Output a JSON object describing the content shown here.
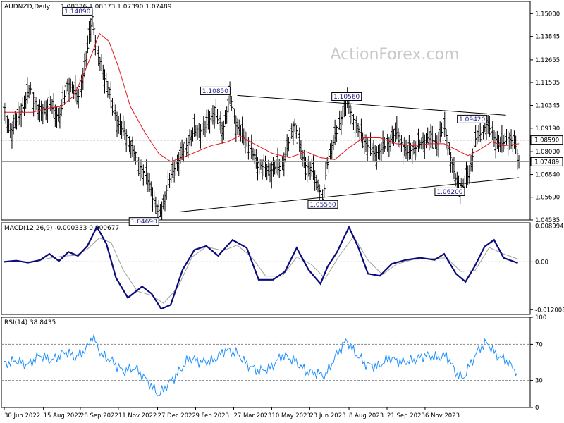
{
  "chart_data": [
    {
      "type": "line",
      "subtype": "ohlc-bars",
      "title": "AUDNZD,Daily",
      "ohlc_header": "1.08336 1.08373 1.07390 1.07489",
      "watermark": "ActionForex.com",
      "ylim": [
        1.04535,
        1.1562
      ],
      "y_ticks": [
        "1.15000",
        "1.13845",
        "1.12655",
        "1.11505",
        "1.10345",
        "1.09190",
        "1.08000",
        "1.06840",
        "1.05690",
        "1.04535"
      ],
      "y_tick_values": [
        1.15,
        1.13845,
        1.12655,
        1.11505,
        1.10345,
        1.0919,
        1.08,
        1.0684,
        1.0569,
        1.04535
      ],
      "price_levels": [
        {
          "label": "1.08590",
          "value": 1.0859,
          "style": "dashed"
        },
        {
          "label": "1.07489",
          "value": 1.07489,
          "style": "solid"
        }
      ],
      "x_index_range": [
        0,
        440
      ],
      "x_ticks": [
        "30 Jun 2022",
        "15 Aug 2022",
        "28 Sep 2022",
        "11 Nov 2022",
        "27 Dec 2022",
        "9 Feb 2023",
        "27 Mar 2023",
        "10 May 2023",
        "23 Jun 2023",
        "8 Aug 2023",
        "21 Sep 2023",
        "6 Nov 2023"
      ],
      "x_tick_index": [
        0,
        33,
        64,
        96,
        129,
        161,
        193,
        225,
        257,
        290,
        322,
        354
      ],
      "price_points": [
        [
          0,
          1.1
        ],
        [
          6,
          1.09
        ],
        [
          14,
          1.1
        ],
        [
          22,
          1.112
        ],
        [
          30,
          1.099
        ],
        [
          38,
          1.104
        ],
        [
          46,
          1.097
        ],
        [
          54,
          1.116
        ],
        [
          62,
          1.107
        ],
        [
          68,
          1.123
        ],
        [
          74,
          1.1489
        ],
        [
          78,
          1.13
        ],
        [
          84,
          1.12
        ],
        [
          90,
          1.105
        ],
        [
          96,
          1.094
        ],
        [
          104,
          1.087
        ],
        [
          112,
          1.075
        ],
        [
          122,
          1.064
        ],
        [
          130,
          1.0469
        ],
        [
          134,
          1.055
        ],
        [
          140,
          1.068
        ],
        [
          150,
          1.079
        ],
        [
          160,
          1.091
        ],
        [
          168,
          1.091
        ],
        [
          176,
          1.1
        ],
        [
          184,
          1.091
        ],
        [
          190,
          1.1085
        ],
        [
          196,
          1.092
        ],
        [
          204,
          1.085
        ],
        [
          212,
          1.075
        ],
        [
          222,
          1.07
        ],
        [
          234,
          1.073
        ],
        [
          244,
          1.095
        ],
        [
          252,
          1.074
        ],
        [
          260,
          1.069
        ],
        [
          268,
          1.0556
        ],
        [
          272,
          1.076
        ],
        [
          280,
          1.09
        ],
        [
          288,
          1.1056
        ],
        [
          294,
          1.096
        ],
        [
          302,
          1.086
        ],
        [
          312,
          1.078
        ],
        [
          322,
          1.084
        ],
        [
          330,
          1.09
        ],
        [
          338,
          1.079
        ],
        [
          348,
          1.083
        ],
        [
          356,
          1.087
        ],
        [
          364,
          1.084
        ],
        [
          370,
          1.093
        ],
        [
          374,
          1.082
        ],
        [
          380,
          1.065
        ],
        [
          386,
          1.062
        ],
        [
          392,
          1.07
        ],
        [
          396,
          1.086
        ],
        [
          402,
          1.09
        ],
        [
          406,
          1.0942
        ],
        [
          412,
          1.087
        ],
        [
          418,
          1.083
        ],
        [
          424,
          1.087
        ],
        [
          430,
          1.0834
        ],
        [
          433,
          1.07489
        ]
      ],
      "moving_average": [
        [
          0,
          1.1
        ],
        [
          12,
          1.1
        ],
        [
          24,
          1.1
        ],
        [
          36,
          1.102
        ],
        [
          48,
          1.103
        ],
        [
          58,
          1.108
        ],
        [
          66,
          1.118
        ],
        [
          74,
          1.13
        ],
        [
          80,
          1.14
        ],
        [
          88,
          1.136
        ],
        [
          96,
          1.123
        ],
        [
          106,
          1.103
        ],
        [
          118,
          1.09
        ],
        [
          130,
          1.079
        ],
        [
          140,
          1.075
        ],
        [
          150,
          1.077
        ],
        [
          162,
          1.08
        ],
        [
          174,
          1.083
        ],
        [
          188,
          1.085
        ],
        [
          198,
          1.088
        ],
        [
          210,
          1.084
        ],
        [
          226,
          1.079
        ],
        [
          240,
          1.077
        ],
        [
          254,
          1.08
        ],
        [
          266,
          1.077
        ],
        [
          278,
          1.076
        ],
        [
          290,
          1.082
        ],
        [
          302,
          1.087
        ],
        [
          316,
          1.087
        ],
        [
          330,
          1.084
        ],
        [
          344,
          1.083
        ],
        [
          358,
          1.084
        ],
        [
          370,
          1.084
        ],
        [
          380,
          1.081
        ],
        [
          390,
          1.078
        ],
        [
          400,
          1.081
        ],
        [
          410,
          1.085
        ],
        [
          420,
          1.083
        ],
        [
          433,
          1.084
        ]
      ],
      "trend_lines": [
        {
          "from": [
            148,
            1.0495
          ],
          "to": [
            433,
            1.0668
          ]
        },
        {
          "from": [
            196,
            1.1085
          ],
          "to": [
            422,
            1.0985
          ]
        }
      ],
      "annotations": [
        {
          "label": "1.14890",
          "x": 74,
          "y": 1.1489,
          "anchor": "left"
        },
        {
          "label": "1.10850",
          "x": 190,
          "y": 1.1085,
          "anchor": "left"
        },
        {
          "label": "1.10560",
          "x": 288,
          "y": 1.1056,
          "anchor": "center"
        },
        {
          "label": "1.09420",
          "x": 406,
          "y": 1.0942,
          "anchor": "left"
        },
        {
          "label": "1.06200",
          "x": 386,
          "y": 1.062,
          "anchor": "right"
        },
        {
          "label": "1.05560",
          "x": 268,
          "y": 1.0556,
          "anchor": "center"
        },
        {
          "label": "1.04690",
          "x": 130,
          "y": 1.0469,
          "anchor": "left"
        }
      ]
    },
    {
      "type": "line",
      "title": "MACD(12,26,9) -0.000333 0.000677",
      "ylim": [
        -0.0132,
        0.0098
      ],
      "y_ticks": [
        "0.008994",
        "0.00",
        "-0.012008"
      ],
      "y_tick_values": [
        0.008994,
        0,
        -0.012008
      ],
      "series": [
        {
          "values": [
            [
              0,
              0
            ],
            [
              10,
              0.0003
            ],
            [
              20,
              -0.0002
            ],
            [
              30,
              0.0004
            ],
            [
              38,
              0.002
            ],
            [
              46,
              0.0002
            ],
            [
              54,
              0.0025
            ],
            [
              62,
              0.0015
            ],
            [
              70,
              0.004
            ],
            [
              78,
              0.0088
            ],
            [
              86,
              0.0045
            ],
            [
              94,
              -0.004
            ],
            [
              104,
              -0.009
            ],
            [
              116,
              -0.0062
            ],
            [
              124,
              -0.008
            ],
            [
              132,
              -0.0118
            ],
            [
              140,
              -0.0108
            ],
            [
              150,
              -0.002
            ],
            [
              160,
              0.003
            ],
            [
              170,
              0.004
            ],
            [
              180,
              0.0015
            ],
            [
              192,
              0.0055
            ],
            [
              204,
              0.0035
            ],
            [
              214,
              -0.0045
            ],
            [
              226,
              -0.0045
            ],
            [
              236,
              -0.0025
            ],
            [
              246,
              0.0035
            ],
            [
              256,
              -0.002
            ],
            [
              266,
              -0.0055
            ],
            [
              272,
              -0.0012
            ],
            [
              280,
              0.0025
            ],
            [
              290,
              0.0087
            ],
            [
              298,
              0.0035
            ],
            [
              306,
              -0.003
            ],
            [
              316,
              -0.0035
            ],
            [
              326,
              -0.0005
            ],
            [
              338,
              0.0005
            ],
            [
              350,
              0.001
            ],
            [
              362,
              0.0005
            ],
            [
              370,
              0.002
            ],
            [
              380,
              -0.003
            ],
            [
              388,
              -0.005
            ],
            [
              396,
              -0.001
            ],
            [
              404,
              0.0038
            ],
            [
              412,
              0.0055
            ],
            [
              420,
              0.001
            ],
            [
              432,
              -0.0003
            ]
          ]
        },
        {
          "values": [
            [
              0,
              0
            ],
            [
              12,
              0
            ],
            [
              24,
              0
            ],
            [
              36,
              0.0008
            ],
            [
              48,
              0.0014
            ],
            [
              60,
              0.0016
            ],
            [
              70,
              0.0032
            ],
            [
              80,
              0.006
            ],
            [
              90,
              0.0048
            ],
            [
              100,
              -0.002
            ],
            [
              112,
              -0.0074
            ],
            [
              124,
              -0.0084
            ],
            [
              134,
              -0.0104
            ],
            [
              146,
              -0.0064
            ],
            [
              158,
              0.0012
            ],
            [
              170,
              0.0038
            ],
            [
              184,
              0.0028
            ],
            [
              196,
              0.0042
            ],
            [
              208,
              0.0012
            ],
            [
              220,
              -0.0036
            ],
            [
              234,
              -0.0036
            ],
            [
              246,
              0.0012
            ],
            [
              258,
              -0.0006
            ],
            [
              270,
              -0.0042
            ],
            [
              282,
              0.0016
            ],
            [
              294,
              0.0064
            ],
            [
              306,
              0.0004
            ],
            [
              318,
              -0.0032
            ],
            [
              330,
              -0.0006
            ],
            [
              344,
              0.0006
            ],
            [
              358,
              0.0008
            ],
            [
              372,
              0.001
            ],
            [
              384,
              -0.0024
            ],
            [
              396,
              -0.0022
            ],
            [
              408,
              0.0036
            ],
            [
              420,
              0.002
            ],
            [
              432,
              0.0007
            ]
          ]
        }
      ]
    },
    {
      "type": "line",
      "title": "RSI(14) 38.8435",
      "ylim": [
        0,
        100
      ],
      "y_ticks": [
        "100",
        "70",
        "30",
        "0"
      ],
      "y_tick_values": [
        100,
        70,
        30,
        0
      ],
      "reference_lines": [
        70,
        30
      ],
      "series": [
        {
          "values": [
            [
              0,
              48
            ],
            [
              10,
              52
            ],
            [
              20,
              47
            ],
            [
              30,
              58
            ],
            [
              40,
              52
            ],
            [
              52,
              62
            ],
            [
              60,
              55
            ],
            [
              70,
              66
            ],
            [
              74,
              80
            ],
            [
              82,
              58
            ],
            [
              90,
              52
            ],
            [
              100,
              40
            ],
            [
              110,
              44
            ],
            [
              120,
              30
            ],
            [
              130,
              14
            ],
            [
              138,
              26
            ],
            [
              146,
              38
            ],
            [
              156,
              55
            ],
            [
              166,
              50
            ],
            [
              176,
              52
            ],
            [
              186,
              64
            ],
            [
              196,
              60
            ],
            [
              204,
              48
            ],
            [
              214,
              40
            ],
            [
              224,
              44
            ],
            [
              234,
              58
            ],
            [
              244,
              52
            ],
            [
              254,
              40
            ],
            [
              264,
              38
            ],
            [
              270,
              35
            ],
            [
              278,
              55
            ],
            [
              288,
              75
            ],
            [
              294,
              62
            ],
            [
              304,
              48
            ],
            [
              314,
              45
            ],
            [
              324,
              55
            ],
            [
              334,
              50
            ],
            [
              344,
              52
            ],
            [
              354,
              58
            ],
            [
              364,
              55
            ],
            [
              372,
              58
            ],
            [
              380,
              38
            ],
            [
              386,
              32
            ],
            [
              392,
              48
            ],
            [
              400,
              66
            ],
            [
              406,
              72
            ],
            [
              414,
              58
            ],
            [
              422,
              52
            ],
            [
              432,
              38.8
            ]
          ]
        }
      ]
    }
  ]
}
